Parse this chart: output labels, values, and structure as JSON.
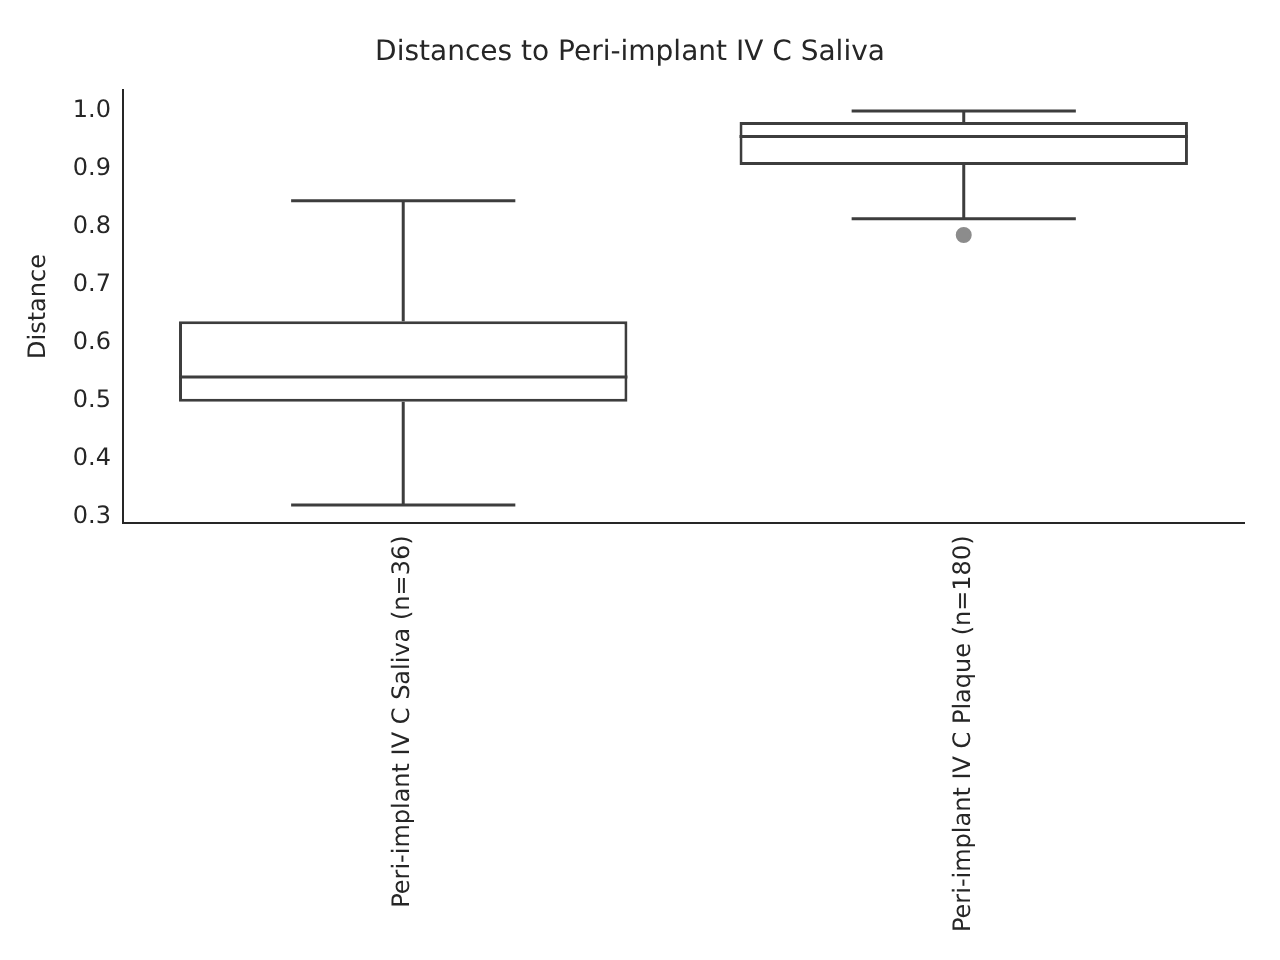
{
  "chart_data": {
    "type": "box",
    "title": "Distances to Peri-implant IV C Saliva",
    "ylabel": "Distance",
    "categories": [
      "Peri-implant IV C Saliva (n=36)",
      "Peri-implant IV C Plaque (n=180)"
    ],
    "boxes": [
      {
        "low": 0.32,
        "q1": 0.498,
        "median": 0.541,
        "q3": 0.637,
        "high": 0.845
      },
      {
        "low": 0.814,
        "q1": 0.907,
        "median": 0.956,
        "q3": 0.981,
        "high": 1.0,
        "outliers": [
          0.786
        ]
      }
    ],
    "color": "#3d3d3d",
    "ylim": [
      0.288,
      1.037
    ],
    "yticks": [
      0.3,
      0.4,
      0.5,
      0.6,
      0.7,
      0.8,
      0.9,
      {
        "value": 1,
        "label": "1.0"
      }
    ],
    "grid": false,
    "legend": false
  }
}
